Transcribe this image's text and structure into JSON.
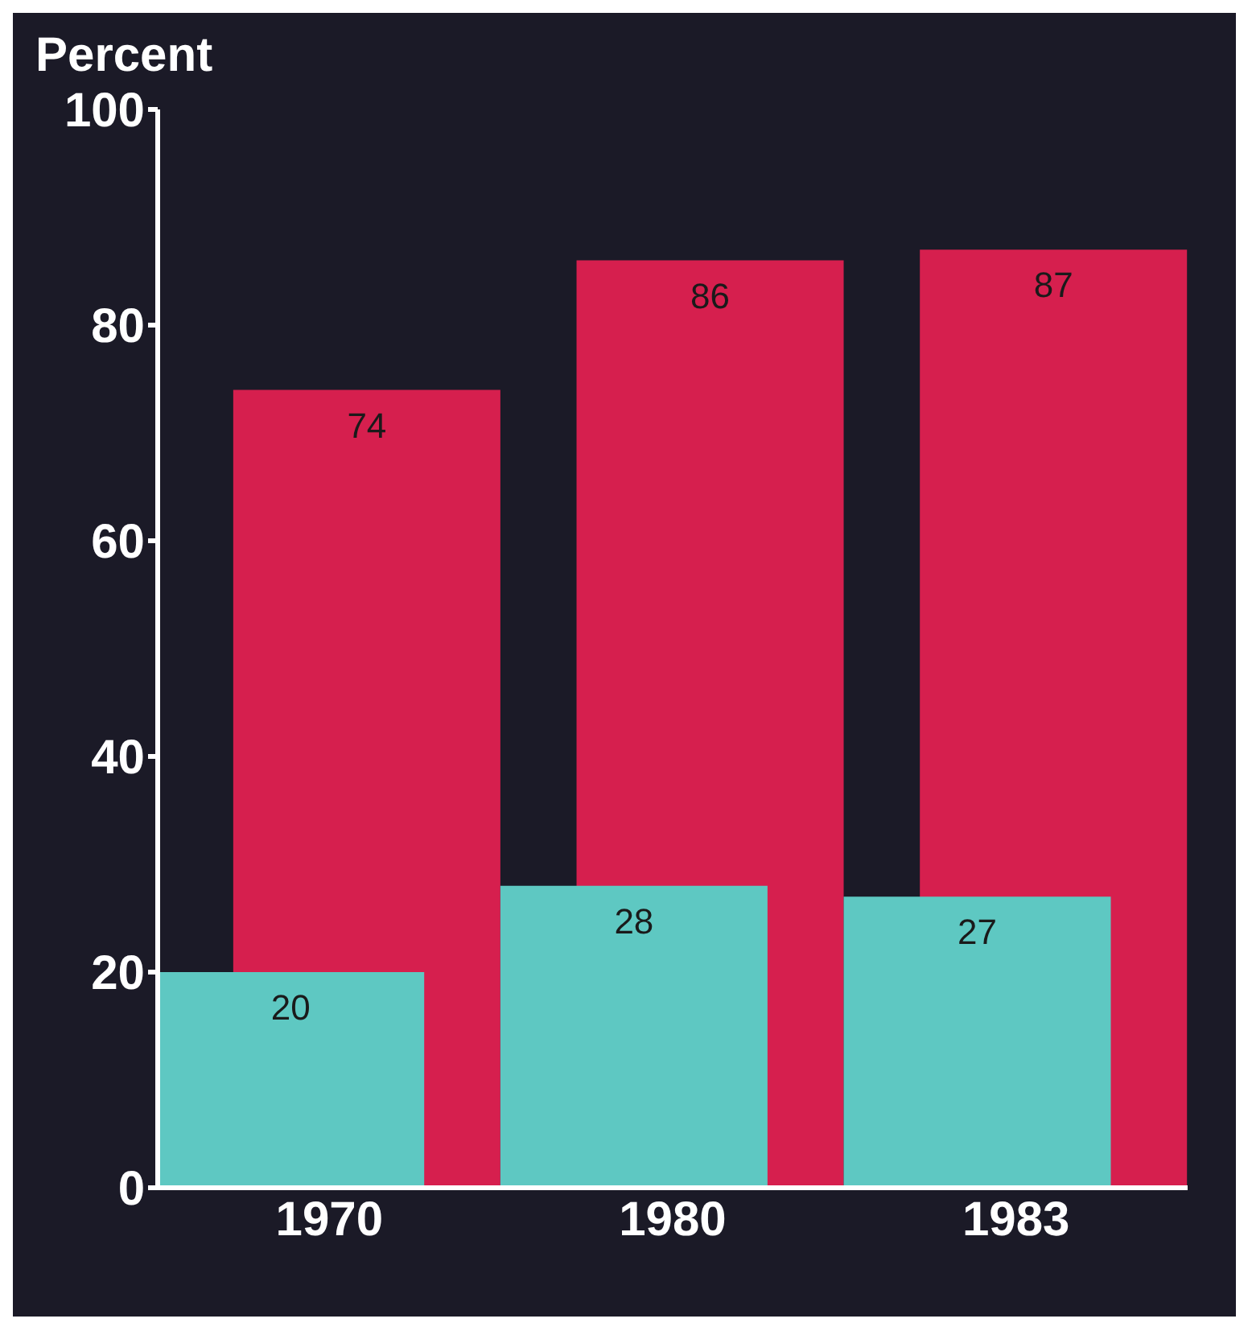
{
  "chart_data": {
    "type": "bar",
    "ylabel": "Percent",
    "categories": [
      "1970",
      "1980",
      "1983"
    ],
    "series": [
      {
        "color": "#d61f4e",
        "values": [
          74,
          86,
          87
        ]
      },
      {
        "color": "#5ec8c2",
        "values": [
          20,
          28,
          27
        ]
      }
    ],
    "ylim": [
      0,
      100
    ],
    "yticks": [
      0,
      20,
      40,
      60,
      80,
      100
    ],
    "data_labels": true,
    "grid": false,
    "legend": false
  }
}
